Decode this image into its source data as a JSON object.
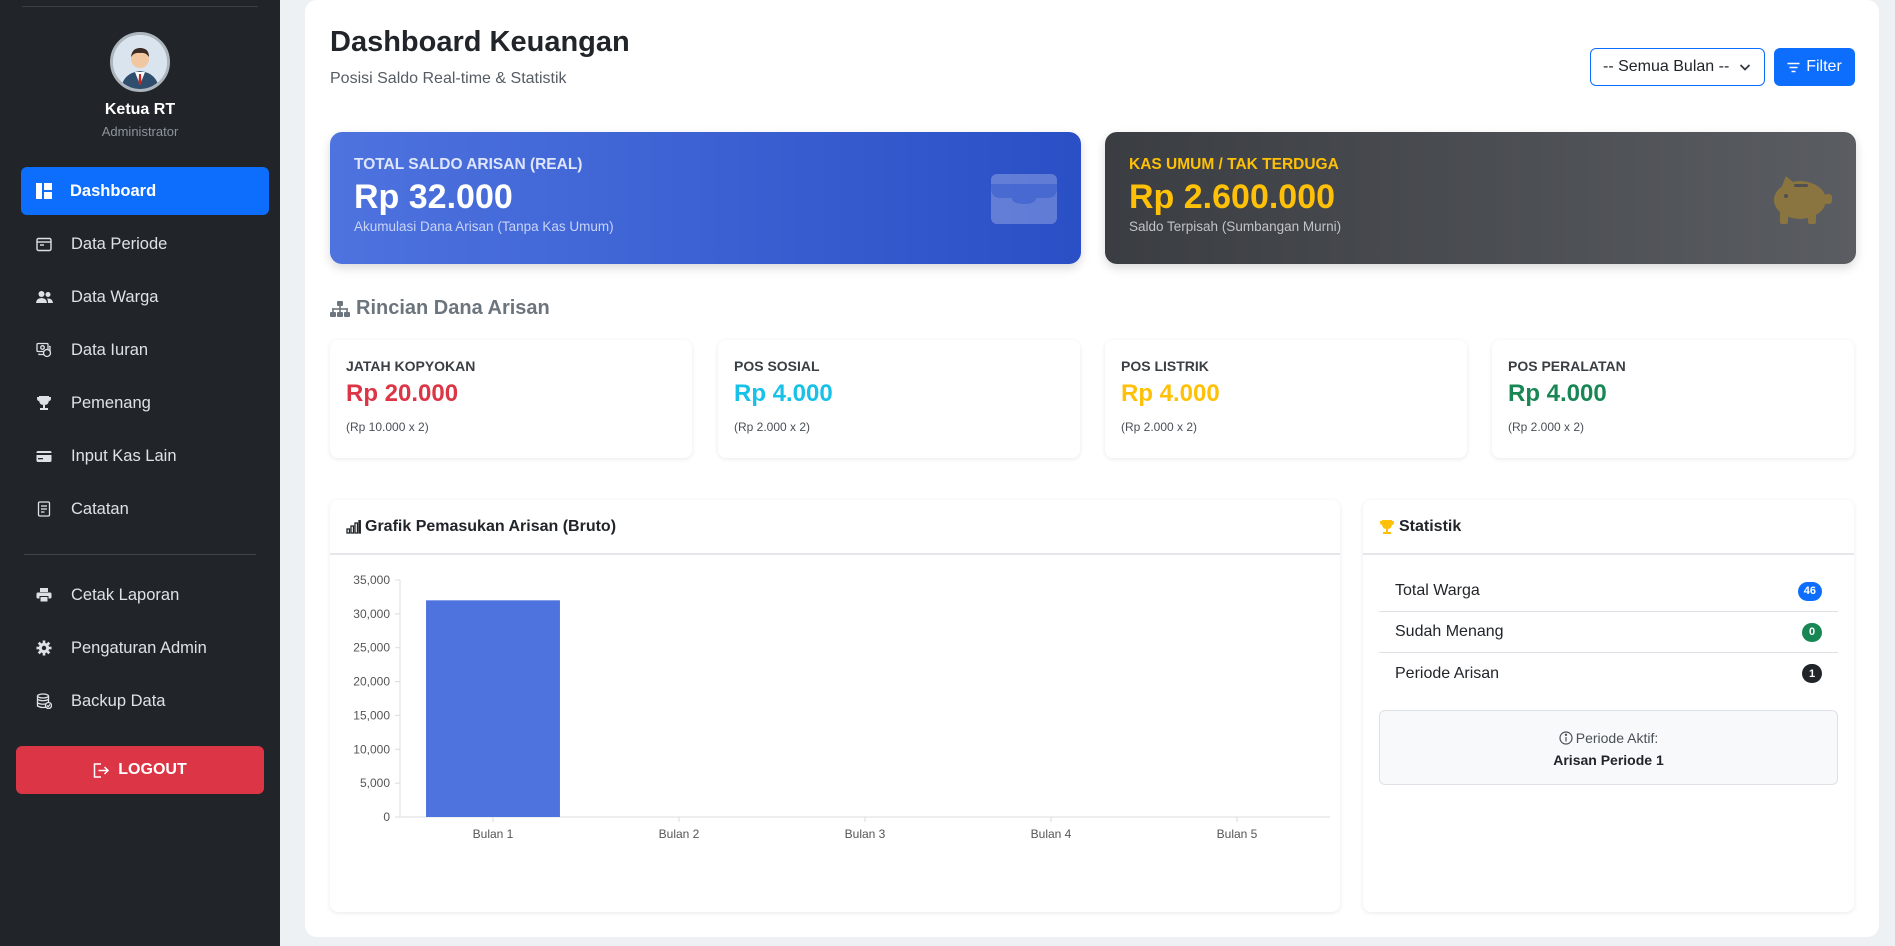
{
  "sidebar": {
    "user_name": "Ketua RT",
    "user_role": "Administrator",
    "menu": [
      {
        "label": "Dashboard",
        "icon": "dashboard-icon"
      },
      {
        "label": "Data Periode",
        "icon": "calendar-icon"
      },
      {
        "label": "Data Warga",
        "icon": "people-icon"
      },
      {
        "label": "Data Iuran",
        "icon": "cash-stack-icon"
      },
      {
        "label": "Pemenang",
        "icon": "trophy-icon"
      },
      {
        "label": "Input Kas Lain",
        "icon": "wallet-icon"
      },
      {
        "label": "Catatan",
        "icon": "notes-icon"
      }
    ],
    "tools": [
      {
        "label": "Cetak Laporan",
        "icon": "printer-icon"
      },
      {
        "label": "Pengaturan Admin",
        "icon": "gear-icon"
      },
      {
        "label": "Backup Data",
        "icon": "database-icon"
      }
    ],
    "logout_label": "LOGOUT"
  },
  "header": {
    "title": "Dashboard Keuangan",
    "subtitle": "Posisi Saldo Real-time & Statistik",
    "month_select": "-- Semua Bulan --",
    "filter_label": "Filter"
  },
  "hero_cards": [
    {
      "label": "TOTAL SALDO ARISAN (REAL)",
      "value": "Rp 32.000",
      "note": "Akumulasi Dana Arisan (Tanpa Kas Umum)",
      "color": "#4e73df"
    },
    {
      "label": "KAS UMUM / TAK TERDUGA",
      "value": "Rp 2.600.000",
      "note": "Saldo Terpisah (Sumbangan Murni)",
      "color": "#ffc107"
    }
  ],
  "breakdown": {
    "title": "Rincian Dana Arisan",
    "items": [
      {
        "label": "JATAH KOPYOKAN",
        "value": "Rp 20.000",
        "note": "(Rp 10.000 x 2)",
        "color": "#dc3545"
      },
      {
        "label": "POS SOSIAL",
        "value": "Rp 4.000",
        "note": "(Rp 2.000 x 2)",
        "color": "#17c1e8"
      },
      {
        "label": "POS LISTRIK",
        "value": "Rp 4.000",
        "note": "(Rp 2.000 x 2)",
        "color": "#ffc107"
      },
      {
        "label": "POS PERALATAN",
        "value": "Rp 4.000",
        "note": "(Rp 2.000 x 2)",
        "color": "#198754"
      }
    ]
  },
  "chart_panel": {
    "title": "Grafik Pemasukan Arisan (Bruto)"
  },
  "chart_data": {
    "type": "bar",
    "categories": [
      "Bulan 1",
      "Bulan 2",
      "Bulan 3",
      "Bulan 4",
      "Bulan 5"
    ],
    "values": [
      32000,
      0,
      0,
      0,
      0
    ],
    "ylim": [
      0,
      35000
    ],
    "yticks": [
      0,
      5000,
      10000,
      15000,
      20000,
      25000,
      30000,
      35000
    ],
    "ytick_labels": [
      "0",
      "5,000",
      "10,000",
      "15,000",
      "20,000",
      "25,000",
      "30,000",
      "35,000"
    ],
    "bar_color": "#4e73df",
    "grid": false
  },
  "stats": {
    "title": "Statistik",
    "rows": [
      {
        "label": "Total Warga",
        "value": "46",
        "color": "#0d6efd"
      },
      {
        "label": "Sudah Menang",
        "value": "0",
        "color": "#198754"
      },
      {
        "label": "Periode Arisan",
        "value": "1",
        "color": "#212529"
      }
    ],
    "active_label": "Periode Aktif:",
    "active_value": "Arisan Periode 1"
  }
}
